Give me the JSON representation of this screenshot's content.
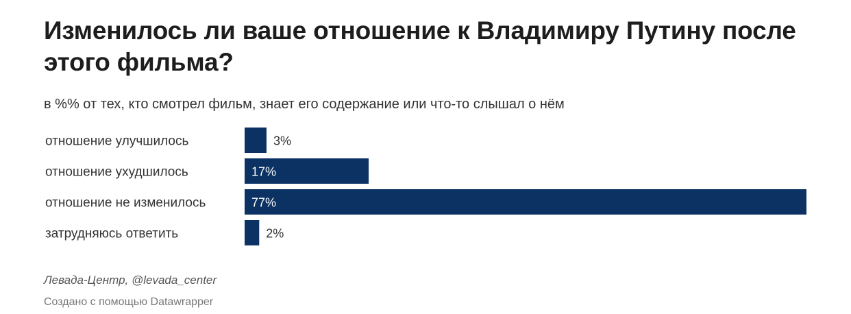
{
  "header": {
    "title": "Изменилось ли ваше отношение к Владимиру Путину после этого фильма?",
    "subtitle": "в %% от тех, кто смотрел фильм, знает его содержание или что-то слышал о нём"
  },
  "footer": {
    "source": "Левада-Центр, @levada_center",
    "credit": "Создано с помощью Datawrapper"
  },
  "colors": {
    "bar": "#0b3263",
    "label_text": "#333333",
    "value_inside": "#ffffff",
    "value_outside": "#333333"
  },
  "chart_data": {
    "type": "bar",
    "orientation": "horizontal",
    "categories": [
      "отношение улучшилось",
      "отношение ухудшилось",
      "отношение не изменилось",
      "затрудняюсь ответить"
    ],
    "values": [
      3,
      17,
      77,
      2
    ],
    "value_labels": [
      "3%",
      "17%",
      "77%",
      "2%"
    ],
    "unit": "%",
    "xlim": [
      0,
      77
    ],
    "grid": false,
    "legend": "none"
  }
}
